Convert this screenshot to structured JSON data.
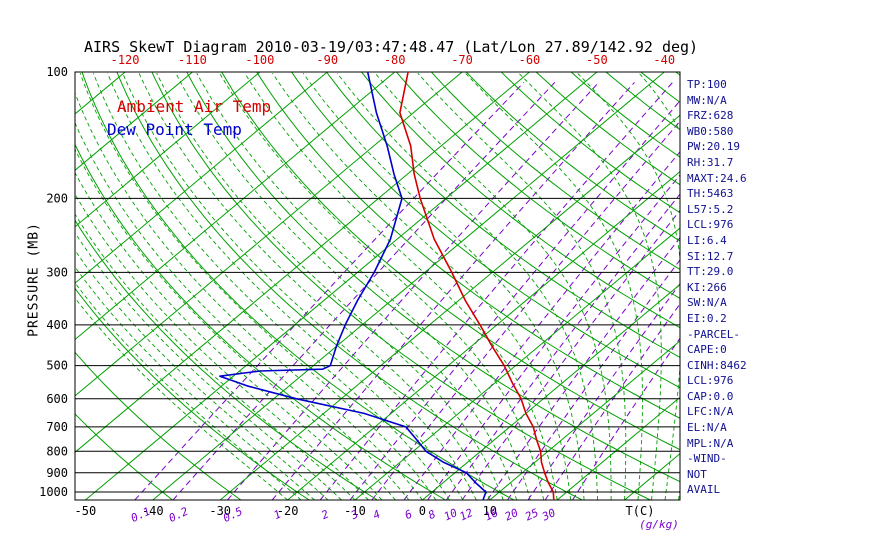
{
  "title": "AIRS SkewT Diagram 2010-03-19/03:47:48.47 (Lat/Lon 27.89/142.92 deg)",
  "stats_panel": {
    "lines": [
      "TP:100",
      "MW:N/A",
      "FRZ:628",
      "WB0:580",
      "PW:20.19",
      "RH:31.7",
      "MAXT:24.6",
      "TH:5463",
      "L57:5.2",
      "LCL:976",
      "LI:6.4",
      "SI:12.7",
      "TT:29.0",
      "KI:266",
      "SW:N/A",
      "EI:0.2",
      "-PARCEL-",
      "CAPE:0",
      "CINH:8462",
      "LCL:976",
      "CAP:0.0",
      "LFC:N/A",
      "EL:N/A",
      "MPL:N/A",
      "-WIND-",
      "NOT",
      "AVAIL"
    ]
  },
  "chart_data": {
    "type": "line",
    "title": "AIRS SkewT Diagram 2010-03-19/03:47:48.47 (Lat/Lon 27.89/142.92 deg)",
    "y_axis": {
      "label": "PRESSURE (MB)",
      "scale": "log",
      "range": [
        100,
        1045
      ],
      "ticks": [
        100,
        200,
        300,
        400,
        500,
        600,
        700,
        800,
        900,
        1000
      ]
    },
    "x_axis": {
      "label": "T(C)",
      "bottom_ticks": [
        -50,
        -40,
        -30,
        -20,
        -10,
        0,
        10
      ],
      "top_ticks": [
        -120,
        -110,
        -100,
        -90,
        -80,
        -70,
        -60,
        -50,
        -40
      ]
    },
    "mixing_ratio": {
      "label": "(g/kg)",
      "values": [
        0.1,
        0.2,
        0.5,
        1,
        2,
        3,
        4,
        6,
        8,
        10,
        12,
        16,
        20,
        25,
        30
      ],
      "unlabeled": [
        40
      ]
    },
    "colors": {
      "grid_green": "#00a000",
      "mixing_purple": "#7a00cc",
      "temp_red": "#d40000",
      "dewpoint_blue": "#0000cc",
      "pressure_black": "#000000"
    },
    "series": [
      {
        "name": "Ambient Air Temp",
        "color_key": "temp_red",
        "points": [
          [
            1045,
            19.5
          ],
          [
            1000,
            18
          ],
          [
            950,
            15.6
          ],
          [
            900,
            13.3
          ],
          [
            850,
            11
          ],
          [
            800,
            8.9
          ],
          [
            750,
            6.2
          ],
          [
            700,
            3.5
          ],
          [
            650,
            0
          ],
          [
            600,
            -3.3
          ],
          [
            550,
            -7.4
          ],
          [
            500,
            -11.7
          ],
          [
            450,
            -16.9
          ],
          [
            400,
            -22.5
          ],
          [
            350,
            -29
          ],
          [
            300,
            -36
          ],
          [
            250,
            -44.5
          ],
          [
            200,
            -53.8
          ],
          [
            175,
            -59
          ],
          [
            150,
            -64.5
          ],
          [
            125,
            -72
          ],
          [
            100,
            -78
          ]
        ]
      },
      {
        "name": "Dew Point Temp",
        "color_key": "dewpoint_blue",
        "points": [
          [
            1045,
            9
          ],
          [
            1000,
            8
          ],
          [
            950,
            4.8
          ],
          [
            900,
            1.7
          ],
          [
            850,
            -3.5
          ],
          [
            800,
            -8.1
          ],
          [
            750,
            -11.6
          ],
          [
            700,
            -15.4
          ],
          [
            650,
            -24
          ],
          [
            600,
            -36.6
          ],
          [
            560,
            -46
          ],
          [
            530,
            -52
          ],
          [
            515,
            -47
          ],
          [
            510,
            -38
          ],
          [
            500,
            -37.5
          ],
          [
            450,
            -40
          ],
          [
            400,
            -42.5
          ],
          [
            350,
            -45
          ],
          [
            300,
            -47.5
          ],
          [
            250,
            -51
          ],
          [
            200,
            -56.5
          ],
          [
            175,
            -62
          ],
          [
            150,
            -68
          ],
          [
            125,
            -75.5
          ],
          [
            100,
            -84
          ]
        ]
      }
    ]
  }
}
